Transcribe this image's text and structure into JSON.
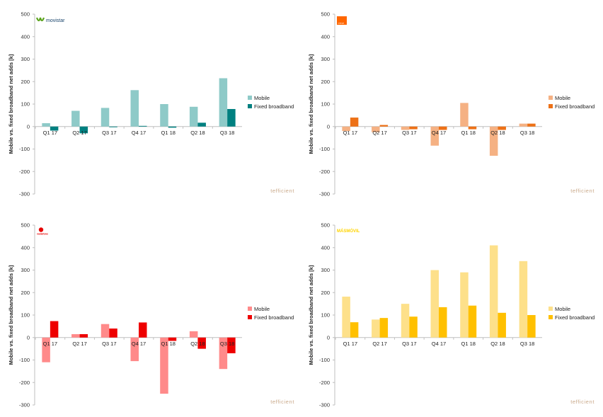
{
  "chart_data": [
    {
      "type": "bar",
      "brand": "movistar",
      "brand_logo_text": "movistar",
      "ylabel": "Mobile vs. fixed broadband net adds [k]",
      "ylim": [
        -300,
        500
      ],
      "yticks": [
        500,
        400,
        300,
        200,
        100,
        0,
        -100,
        -200,
        -300
      ],
      "categories": [
        "Q1 17",
        "Q2 17",
        "Q3 17",
        "Q4 17",
        "Q1 18",
        "Q2 18",
        "Q3 18"
      ],
      "series": [
        {
          "name": "Mobile",
          "values": [
            15,
            70,
            83,
            162,
            100,
            88,
            215
          ],
          "color": "#8ecac8"
        },
        {
          "name": "Fixed broadband",
          "values": [
            -18,
            -30,
            -3,
            3,
            -5,
            17,
            78
          ],
          "color": "#008080"
        }
      ],
      "legend_position": "right",
      "watermark": "tefficient"
    },
    {
      "type": "bar",
      "brand": "orange",
      "brand_logo_text": "orange",
      "ylabel": "Mobile vs. fixed broadband net adds [k]",
      "ylim": [
        -300,
        500
      ],
      "yticks": [
        500,
        400,
        300,
        200,
        100,
        0,
        -100,
        -200,
        -300
      ],
      "categories": [
        "Q1 17",
        "Q2 17",
        "Q3 17",
        "Q4 17",
        "Q1 18",
        "Q2 18",
        "Q3 18"
      ],
      "series": [
        {
          "name": "Mobile",
          "values": [
            -20,
            -25,
            -15,
            -85,
            105,
            -130,
            13
          ],
          "color": "#f5b183"
        },
        {
          "name": "Fixed broadband",
          "values": [
            40,
            7,
            -12,
            -15,
            -12,
            -15,
            13
          ],
          "color": "#ed7117"
        }
      ],
      "legend_position": "right",
      "watermark": "tefficient"
    },
    {
      "type": "bar",
      "brand": "vodafone",
      "brand_logo_text": "vodafone",
      "ylabel": "Mobile vs. fixed broadband net adds [k]",
      "ylim": [
        -300,
        500
      ],
      "yticks": [
        500,
        400,
        300,
        200,
        100,
        0,
        -100,
        -200,
        -300
      ],
      "categories": [
        "Q1 17",
        "Q2 17",
        "Q3 17",
        "Q4 17",
        "Q1 18",
        "Q2 18",
        "Q3 18"
      ],
      "series": [
        {
          "name": "Mobile",
          "values": [
            -110,
            15,
            60,
            -105,
            -250,
            28,
            -140
          ],
          "color": "#ff8a8a"
        },
        {
          "name": "Fixed broadband",
          "values": [
            73,
            15,
            40,
            67,
            -15,
            -50,
            -70
          ],
          "color": "#ee0000"
        }
      ],
      "legend_position": "right",
      "watermark": "tefficient"
    },
    {
      "type": "bar",
      "brand": "masmovil",
      "brand_logo_text": "MÁSMÓVIL",
      "ylabel": "Mobile vs. fixed broadband net adds [k]",
      "ylim": [
        -300,
        500
      ],
      "yticks": [
        500,
        400,
        300,
        200,
        100,
        0,
        -100,
        -200,
        -300
      ],
      "categories": [
        "Q1 17",
        "Q2 17",
        "Q3 17",
        "Q4 17",
        "Q1 18",
        "Q2 18",
        "Q3 18"
      ],
      "series": [
        {
          "name": "Mobile",
          "values": [
            182,
            80,
            150,
            300,
            290,
            410,
            340
          ],
          "color": "#fde08a"
        },
        {
          "name": "Fixed broadband",
          "values": [
            68,
            87,
            93,
            135,
            142,
            110,
            100
          ],
          "color": "#ffc000"
        }
      ],
      "legend_position": "right",
      "watermark": "tefficient"
    }
  ]
}
